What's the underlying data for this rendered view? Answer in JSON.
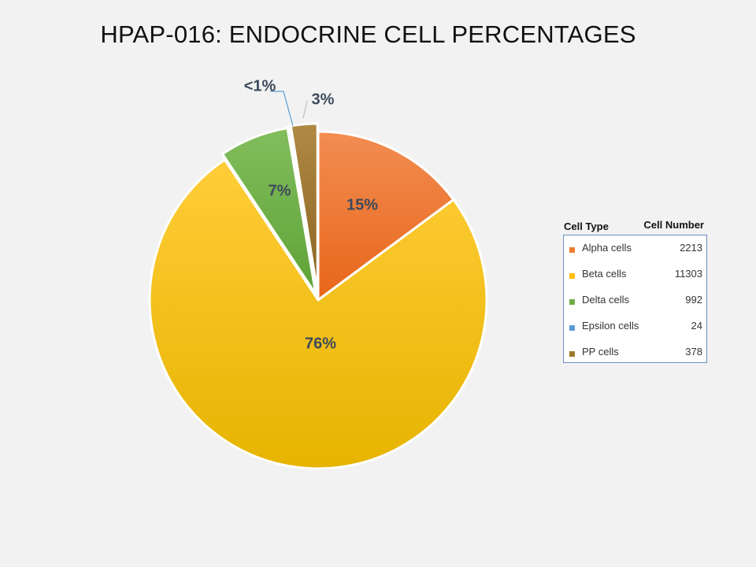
{
  "chart_data": {
    "type": "pie",
    "title": "HPAP-016: ENDOCRINE CELL PERCENTAGES",
    "categories": [
      "Alpha cells",
      "Beta cells",
      "Delta cells",
      "Epsilon cells",
      "PP cells"
    ],
    "values": [
      2213,
      11303,
      992,
      24,
      378
    ],
    "data_labels": [
      "15%",
      "76%",
      "7%",
      "<1%",
      "3%"
    ],
    "colors": [
      "#ed7d31",
      "#ffc000",
      "#70ad47",
      "#5b9bd5",
      "#9e7a2e"
    ],
    "legend": {
      "placement": "right",
      "header_left": "Cell Type",
      "header_right": "Cell Number"
    }
  }
}
